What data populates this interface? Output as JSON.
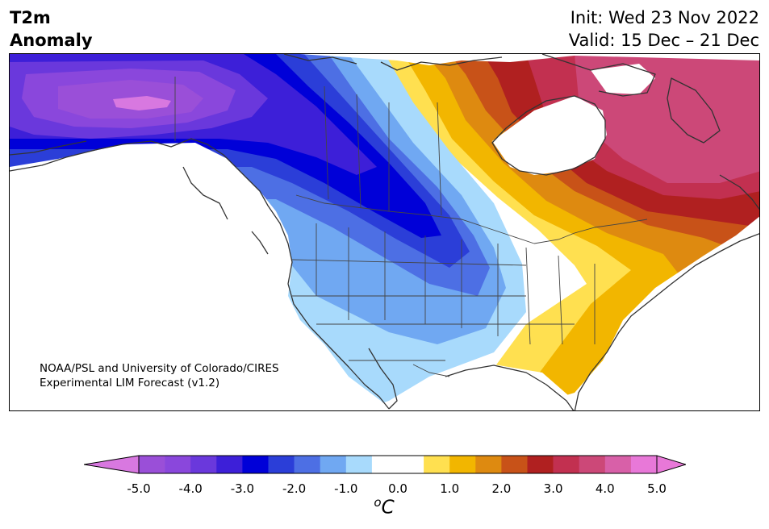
{
  "header": {
    "variable_line1": "T2m",
    "variable_line2": "Anomaly",
    "init_line": "Init: Wed 23 Nov 2022",
    "valid_line": "Valid: 15 Dec – 21 Dec"
  },
  "map": {
    "region": "North America",
    "credit_line1": "NOAA/PSL and University of Colorado/CIRES",
    "credit_line2": "Experimental LIM Forecast (v1.2)",
    "field_description": {
      "cold_anomaly_region": "Alaska, western Canada, US West and northern Plains",
      "warm_anomaly_region": "eastern Canada, Hudson Bay region, Newfoundland, New England"
    }
  },
  "colorbar": {
    "unit_superscript": "o",
    "unit_letter": "C",
    "tick_labels": [
      "-5.0",
      "-4.0",
      "-3.0",
      "-2.0",
      "-1.0",
      "0.0",
      "1.0",
      "2.0",
      "3.0",
      "4.0",
      "5.0"
    ],
    "ticks": [
      -5.0,
      -4.0,
      -3.0,
      -2.0,
      -1.0,
      0.0,
      1.0,
      2.0,
      3.0,
      4.0,
      5.0
    ],
    "range": [
      -5.0,
      5.0
    ],
    "bins": [
      {
        "lo": -5.0,
        "hi": -4.5,
        "color": "#9a4fd8"
      },
      {
        "lo": -4.5,
        "hi": -4.0,
        "color": "#8a47dc"
      },
      {
        "lo": -4.0,
        "hi": -3.5,
        "color": "#6a38dc"
      },
      {
        "lo": -3.5,
        "hi": -3.0,
        "color": "#3d1fd8"
      },
      {
        "lo": -3.0,
        "hi": -2.5,
        "color": "#0000d8"
      },
      {
        "lo": -2.5,
        "hi": -2.0,
        "color": "#2b3ed8"
      },
      {
        "lo": -2.0,
        "hi": -1.5,
        "color": "#4d6fe4"
      },
      {
        "lo": -1.5,
        "hi": -1.0,
        "color": "#70a8f2"
      },
      {
        "lo": -1.0,
        "hi": -0.5,
        "color": "#a8dafc"
      },
      {
        "lo": -0.5,
        "hi": 0.0,
        "color": "#ffffff"
      },
      {
        "lo": 0.0,
        "hi": 0.5,
        "color": "#ffffff"
      },
      {
        "lo": 0.5,
        "hi": 1.0,
        "color": "#ffe050"
      },
      {
        "lo": 1.0,
        "hi": 1.5,
        "color": "#f2b600"
      },
      {
        "lo": 1.5,
        "hi": 2.0,
        "color": "#de8a10"
      },
      {
        "lo": 2.0,
        "hi": 2.5,
        "color": "#c85218"
      },
      {
        "lo": 2.5,
        "hi": 3.0,
        "color": "#b02020"
      },
      {
        "lo": 3.0,
        "hi": 3.5,
        "color": "#c23050"
      },
      {
        "lo": 3.5,
        "hi": 4.0,
        "color": "#cc4878"
      },
      {
        "lo": 4.0,
        "hi": 4.5,
        "color": "#d860a8"
      },
      {
        "lo": 4.5,
        "hi": 5.0,
        "color": "#e878d8"
      }
    ],
    "extend_low_color": "#d878e0",
    "extend_high_color": "#e878d8"
  }
}
